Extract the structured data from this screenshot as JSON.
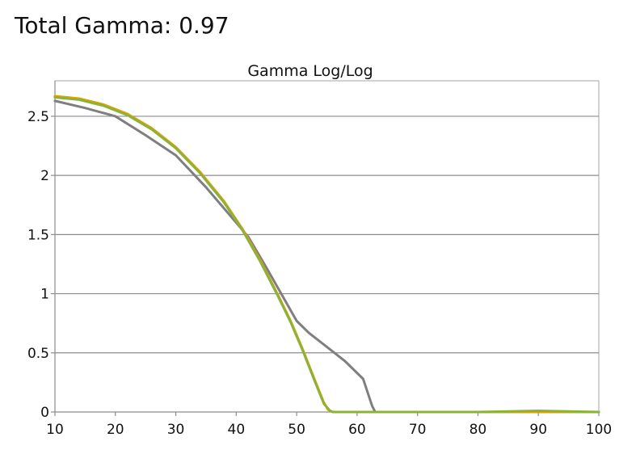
{
  "page": {
    "headline": "Total Gamma: 0.97"
  },
  "chart_data": {
    "type": "line",
    "title": "Gamma Log/Log",
    "xlabel": "",
    "ylabel": "",
    "xlim": [
      10,
      100
    ],
    "ylim": [
      0,
      2.8
    ],
    "x_ticks": [
      10,
      20,
      30,
      40,
      50,
      60,
      70,
      80,
      90,
      100
    ],
    "x_tick_labels": [
      "10",
      "20",
      "30",
      "40",
      "50",
      "60",
      "70",
      "80",
      "90",
      "100"
    ],
    "y_ticks": [
      0,
      0.5,
      1,
      1.5,
      2,
      2.5
    ],
    "y_tick_labels": [
      "0",
      "0.5",
      "1",
      "1.5",
      "2",
      "2.5"
    ],
    "grid": "horizontal",
    "legend": "none",
    "series": [
      {
        "color": "#7f7f7f",
        "x": [
          10,
          15,
          20,
          25,
          30,
          35,
          40,
          42,
          45,
          48,
          50,
          52,
          55,
          58,
          61,
          62.5,
          63,
          70,
          80,
          90,
          100
        ],
        "y": [
          2.63,
          2.57,
          2.5,
          2.34,
          2.17,
          1.9,
          1.6,
          1.48,
          1.22,
          0.95,
          0.77,
          0.67,
          0.55,
          0.43,
          0.28,
          0.05,
          0.0,
          0.0,
          0.0,
          0.0,
          0.0
        ]
      },
      {
        "color": "#e6a100",
        "x": [
          10,
          14,
          18,
          22,
          26,
          30,
          34,
          38,
          41,
          44,
          47,
          49,
          51,
          53,
          54.5,
          55.2,
          56,
          60,
          70,
          80,
          90,
          100
        ],
        "y": [
          2.67,
          2.65,
          2.6,
          2.52,
          2.4,
          2.24,
          2.03,
          1.78,
          1.55,
          1.28,
          0.98,
          0.77,
          0.53,
          0.27,
          0.08,
          0.02,
          0.0,
          0.0,
          0.0,
          0.0,
          0.0,
          0.0
        ]
      },
      {
        "color": "#8db23a",
        "x": [
          10,
          14,
          18,
          22,
          26,
          30,
          34,
          38,
          41,
          44,
          47,
          49,
          51,
          53,
          54.5,
          55.5,
          56,
          60,
          70,
          80,
          90,
          100
        ],
        "y": [
          2.66,
          2.64,
          2.59,
          2.51,
          2.39,
          2.23,
          2.02,
          1.77,
          1.54,
          1.27,
          0.97,
          0.76,
          0.52,
          0.26,
          0.07,
          0.01,
          0.0,
          0.0,
          0.0,
          0.0,
          0.01,
          0.0
        ]
      }
    ],
    "colors": {
      "gridline": "#8c8c8c",
      "plot_border": "#a6a6a6",
      "axis": "#8c8c8c"
    }
  }
}
